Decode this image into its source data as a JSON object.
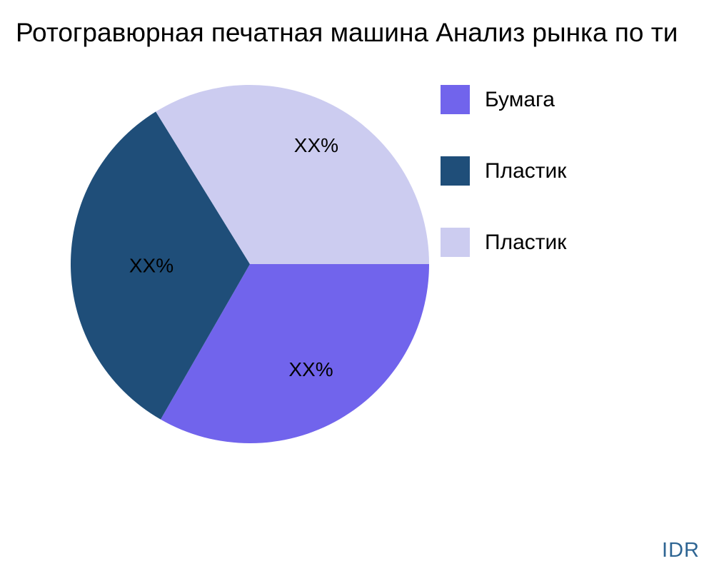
{
  "title": "Ротогравюрная печатная машина Анализ рынка по ти",
  "watermark": "IDR",
  "colors": {
    "background": "#ffffff",
    "title_text": "#000000",
    "label_text": "#000000",
    "watermark_text": "#2E6593",
    "slice_paper": "#7164EC",
    "slice_plastic_dark": "#1F4E79",
    "slice_plastic_light": "#CCCCF0"
  },
  "chart_data": {
    "type": "pie",
    "title": "Ротогравюрная печатная машина Анализ рынка по ти",
    "legend_position": "right",
    "start_angle_deg": 0,
    "direction": "clockwise",
    "slices": [
      {
        "label": "Бумага",
        "color": "#7164EC",
        "value_pct_estimated": 33.3,
        "display_value": "XX%"
      },
      {
        "label": "Пластик",
        "color": "#1F4E79",
        "value_pct_estimated": 32.9,
        "display_value": "XX%"
      },
      {
        "label": "Пластик",
        "color": "#CCCCF0",
        "value_pct_estimated": 33.8,
        "display_value": "XX%"
      }
    ]
  }
}
